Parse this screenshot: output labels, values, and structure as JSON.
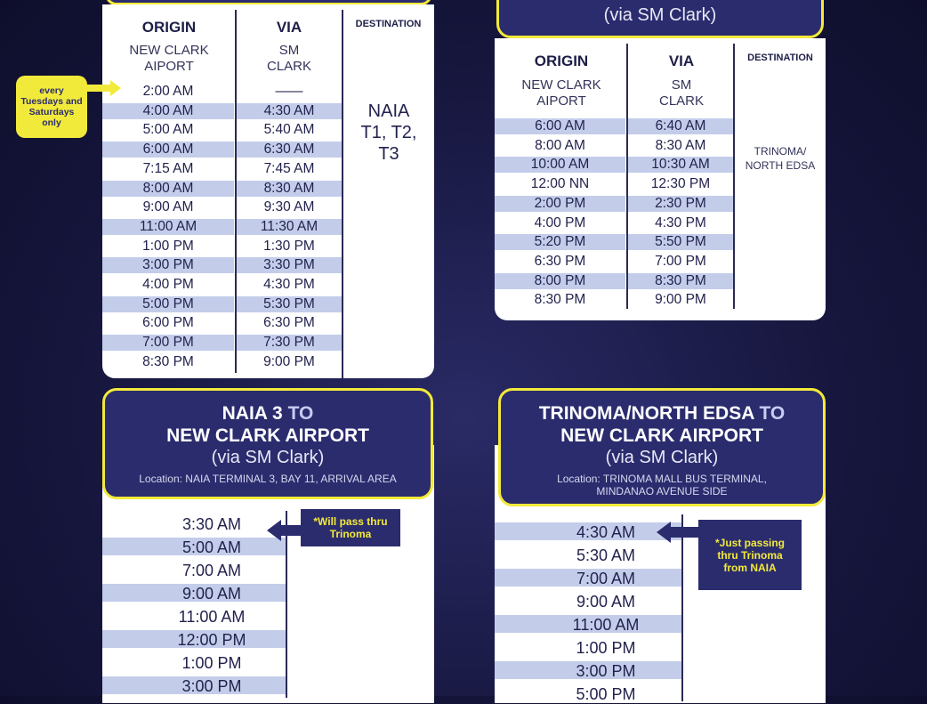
{
  "colors": {
    "background": "#17173f",
    "header": "#2b2c6e",
    "accent_yellow": "#f2ea3a",
    "stripe": "#c3cdea"
  },
  "card_ncia_naia": {
    "headers": {
      "origin": "ORIGIN",
      "via": "VIA",
      "destination": "DESTINATION"
    },
    "origin_place": "NEW CLARK AIPORT",
    "via_place": "SM CLARK",
    "destination": "NAIA T1, T2, T3",
    "note": "every Tuesdays and Saturdays only",
    "rows": [
      [
        "2:00 AM",
        "——"
      ],
      [
        "4:00 AM",
        "4:30 AM"
      ],
      [
        "5:00 AM",
        "5:40 AM"
      ],
      [
        "6:00 AM",
        "6:30 AM"
      ],
      [
        "7:15 AM",
        "7:45 AM"
      ],
      [
        "8:00 AM",
        "8:30 AM"
      ],
      [
        "9:00 AM",
        "9:30 AM"
      ],
      [
        "11:00 AM",
        "11:30 AM"
      ],
      [
        "1:00 PM",
        "1:30 PM"
      ],
      [
        "3:00 PM",
        "3:30 PM"
      ],
      [
        "4:00 PM",
        "4:30 PM"
      ],
      [
        "5:00 PM",
        "5:30 PM"
      ],
      [
        "6:00 PM",
        "6:30 PM"
      ],
      [
        "7:00 PM",
        "7:30 PM"
      ],
      [
        "8:30 PM",
        "9:00 PM"
      ]
    ]
  },
  "card_ncia_trinoma": {
    "subtitle": "(via SM Clark)",
    "headers": {
      "origin": "ORIGIN",
      "via": "VIA",
      "destination": "DESTINATION"
    },
    "origin_place": "NEW CLARK AIPORT",
    "via_place": "SM CLARK",
    "destination": "TRINOMA/ NORTH EDSA",
    "rows": [
      [
        "6:00 AM",
        "6:40 AM"
      ],
      [
        "8:00 AM",
        "8:30 AM"
      ],
      [
        "10:00 AM",
        "10:30 AM"
      ],
      [
        "12:00 NN",
        "12:30 PM"
      ],
      [
        "2:00 PM",
        "2:30 PM"
      ],
      [
        "4:00 PM",
        "4:30 PM"
      ],
      [
        "5:20 PM",
        "5:50 PM"
      ],
      [
        "6:30 PM",
        "7:00 PM"
      ],
      [
        "8:00 PM",
        "8:30 PM"
      ],
      [
        "8:30 PM",
        "9:00 PM"
      ]
    ]
  },
  "card_naia_ncia": {
    "title_from": "NAIA 3",
    "title_to": "TO",
    "title_dest": "NEW CLARK AIRPORT",
    "subtitle": "(via SM Clark)",
    "location": "Location: NAIA TERMINAL 3, BAY 11, ARRIVAL AREA",
    "note": "*Will pass thru Trinoma",
    "times": [
      "3:30 AM",
      "5:00 AM",
      "7:00 AM",
      "9:00 AM",
      "11:00 AM",
      "12:00 PM",
      "1:00 PM",
      "3:00 PM"
    ]
  },
  "card_trinoma_ncia": {
    "title_from": "TRINOMA/NORTH EDSA",
    "title_to": "TO",
    "title_dest": "NEW CLARK AIRPORT",
    "subtitle": "(via SM Clark)",
    "location": "Location: TRINOMA MALL BUS TERMINAL, MINDANAO AVENUE SIDE",
    "note": "*Just passing thru Trinoma from NAIA",
    "times": [
      "4:30 AM",
      "5:30 AM",
      "7:00 AM",
      "9:00 AM",
      "11:00 AM",
      "1:00 PM",
      "3:00 PM",
      "5:00 PM"
    ]
  }
}
